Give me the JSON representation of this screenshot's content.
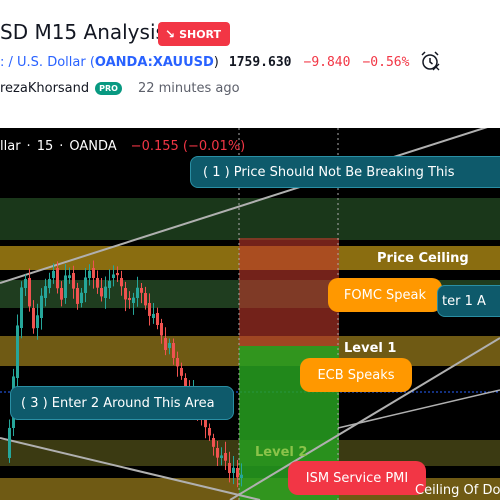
{
  "header": {
    "title": "SD M15 Analysis",
    "badge": "SHORT",
    "badge_icon": "arrow-down-right-icon",
    "symbol_name": ": / U.S. Dollar (",
    "symbol_ticker": "OANDA:XAUUSD",
    "symbol_close": ")",
    "price": "1759.630",
    "change": "−9.840",
    "change_pct": "−0.56%",
    "alarm_icon": "alarm-clock-icon",
    "author": "rezaKhorsand",
    "pro_badge": "PRO",
    "time_ago": "22 minutes ago"
  },
  "chart": {
    "legend": {
      "symbol": "llar",
      "sep1": "·",
      "interval": "15",
      "sep2": "·",
      "broker": "OANDA",
      "change": "−0.155 (−0.01%)"
    },
    "annotations": {
      "note1": "( 1 ) Price Should Not Be Breaking This",
      "note3": "( 3 ) Enter 2 Around This Area",
      "note2_partial": "ter 1  A",
      "price_ceiling": "Price Ceiling",
      "level1": "Level 1",
      "level2": "Level 2",
      "ceiling_partial": "Ceiling Of Do"
    },
    "events": {
      "fomc": "FOMC Speak",
      "ecb": "ECB Speaks",
      "ism": "ISM Service PMI"
    },
    "colors": {
      "background": "#000000",
      "up": "#26a69a",
      "down": "#ef5350",
      "zone_gold": "#8a6d10",
      "zone_green": "#1e3a1e",
      "event_orange": "#ff9800",
      "event_red": "#f23645",
      "callout_teal": "#0e5a6b"
    }
  }
}
